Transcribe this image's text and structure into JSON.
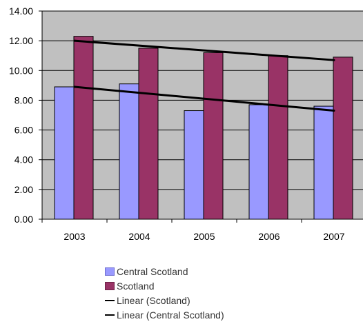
{
  "chart_data": {
    "type": "bar",
    "title": "",
    "xlabel": "",
    "ylabel": "",
    "categories": [
      "2003",
      "2004",
      "2005",
      "2006",
      "2007"
    ],
    "series": [
      {
        "name": "Central Scotland",
        "type": "bar",
        "color": "#9999ff",
        "values": [
          8.9,
          9.1,
          7.3,
          7.7,
          7.6
        ]
      },
      {
        "name": "Scotland",
        "type": "bar",
        "color": "#993366",
        "values": [
          12.3,
          11.5,
          11.2,
          11.0,
          10.9
        ]
      }
    ],
    "trendlines": [
      {
        "name": "Linear (Scotland)",
        "color": "#000000",
        "start": 12.0,
        "end": 10.7
      },
      {
        "name": "Linear (Central Scotland)",
        "color": "#000000",
        "start": 8.9,
        "end": 7.3
      }
    ],
    "yticks": [
      "0.00",
      "2.00",
      "4.00",
      "6.00",
      "8.00",
      "10.00",
      "12.00",
      "14.00"
    ],
    "ylim": [
      0,
      14
    ],
    "grid": true,
    "plot_background": "#c0c0c0",
    "legend_position": "bottom"
  }
}
